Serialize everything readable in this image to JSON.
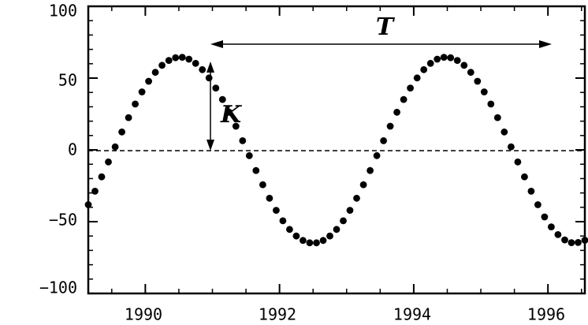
{
  "chart_data": {
    "type": "scatter",
    "title": "",
    "xlabel": "",
    "ylabel": "",
    "xlim": [
      1989.15,
      1996.55
    ],
    "ylim": [
      -100,
      100
    ],
    "x_ticks": [
      1990,
      1992,
      1994,
      1996
    ],
    "x_tick_labels": [
      "1990",
      "1992",
      "1994",
      "1996"
    ],
    "y_ticks": [
      100,
      50,
      0,
      -50,
      -100
    ],
    "y_tick_labels": [
      "100",
      "50",
      "0",
      "−50",
      "−100"
    ],
    "grid": false,
    "legend": "none",
    "reference_line": {
      "y": 0,
      "style": "dashed"
    },
    "series": [
      {
        "x": [
          1989.15,
          1989.25,
          1989.35,
          1989.45,
          1989.55,
          1989.65,
          1989.75,
          1989.85,
          1989.95,
          1990.05,
          1990.15,
          1990.25,
          1990.35,
          1990.45,
          1990.55,
          1990.65,
          1990.75,
          1990.85,
          1990.95,
          1991.05,
          1991.15,
          1991.25,
          1991.35,
          1991.45,
          1991.55,
          1991.65,
          1991.75,
          1991.85,
          1991.95,
          1992.05,
          1992.15,
          1992.25,
          1992.35,
          1992.45,
          1992.55,
          1992.65,
          1992.75,
          1992.85,
          1992.95,
          1993.05,
          1993.15,
          1993.25,
          1993.35,
          1993.45,
          1993.55,
          1993.65,
          1993.75,
          1993.85,
          1993.95,
          1994.05,
          1994.15,
          1994.25,
          1994.35,
          1994.45,
          1994.55,
          1994.65,
          1994.75,
          1994.85,
          1994.95,
          1995.05,
          1995.15,
          1995.25,
          1995.35,
          1995.45,
          1995.55,
          1995.65,
          1995.75,
          1995.85,
          1995.95,
          1996.05,
          1996.15,
          1996.25,
          1996.35,
          1996.45,
          1996.55
        ],
        "y": [
          -38.2,
          -28.8,
          -18.8,
          -8.4,
          2.1,
          12.5,
          22.5,
          31.9,
          40.4,
          47.8,
          54.0,
          58.9,
          62.3,
          64.2,
          64.5,
          63.2,
          60.3,
          55.9,
          50.1,
          43.1,
          35.1,
          26.2,
          16.5,
          6.4,
          -4.0,
          -14.4,
          -24.3,
          -33.7,
          -42.1,
          -49.4,
          -55.4,
          -60.0,
          -63.1,
          -64.7,
          -64.7,
          -63.1,
          -60.0,
          -55.4,
          -49.4,
          -42.1,
          -33.7,
          -24.3,
          -14.4,
          -4.0,
          6.4,
          16.5,
          26.2,
          35.1,
          43.1,
          50.1,
          55.9,
          60.3,
          63.2,
          64.5,
          64.2,
          62.3,
          58.9,
          54.0,
          47.8,
          40.4,
          31.9,
          22.5,
          12.5,
          2.1,
          -8.4,
          -18.8,
          -28.8,
          -38.2,
          -46.7,
          -53.6,
          -59.0,
          -62.7,
          -64.6,
          -64.5,
          -62.9
        ]
      }
    ],
    "annotations": [
      {
        "label": "T",
        "meaning": "period arrow",
        "x_from": 1991.0,
        "x_to": 1996.0,
        "y": 75
      },
      {
        "label": "K",
        "meaning": "amplitude arrow",
        "x": 1991.0,
        "y_from": 0,
        "y_to": 65
      }
    ]
  }
}
